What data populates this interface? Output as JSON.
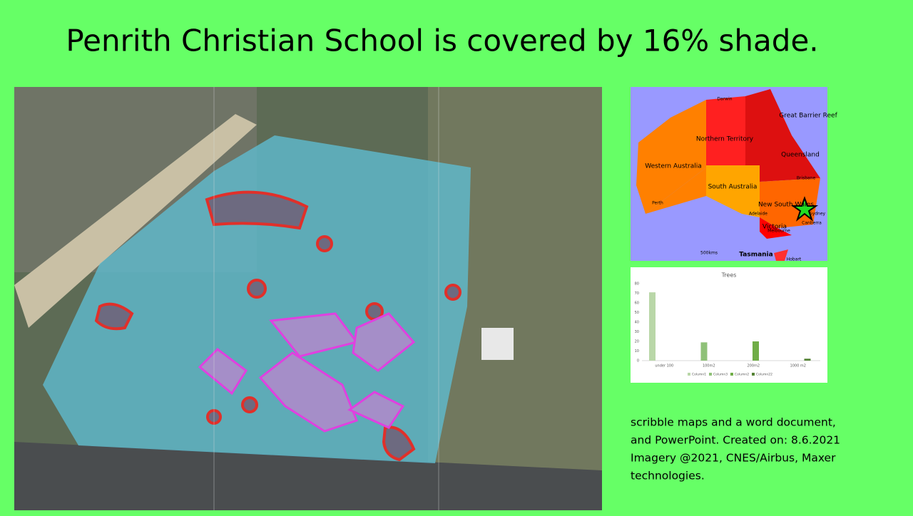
{
  "title": "Penrith Christian School is covered by 16% shade.",
  "map": {
    "labels": [
      "Darwin",
      "Northern Territory",
      "Queensland",
      "Great Barrier Reef",
      "Western Australia",
      "South Australia",
      "New South Wales",
      "Brisbane",
      "Perth",
      "Adelaide",
      "Sydney",
      "Canberra",
      "Melbourne",
      "Victoria",
      "Tasmania",
      "Hobart",
      "500kms"
    ]
  },
  "chart_data": {
    "type": "bar",
    "title": "Trees",
    "categories": [
      "under 100",
      "100m2",
      "200m2",
      "1000 m2"
    ],
    "series": [
      {
        "name": "Column1",
        "color": "#b9d7a8",
        "values": [
          71,
          null,
          null,
          null
        ]
      },
      {
        "name": "Column3",
        "color": "#8fc178",
        "values": [
          null,
          19,
          null,
          null
        ]
      },
      {
        "name": "Column2",
        "color": "#70ad47",
        "values": [
          null,
          null,
          20,
          null
        ]
      },
      {
        "name": "Column22",
        "color": "#548235",
        "values": [
          null,
          null,
          null,
          2
        ]
      }
    ],
    "ylim": [
      0,
      80
    ],
    "yticks": [
      0,
      10,
      20,
      30,
      40,
      50,
      60,
      70,
      80
    ],
    "grid": false
  },
  "notes": [
    "scribble maps and a word document,",
    "and PowerPoint. Created on: 8.6.2021",
    "Imagery @2021, CNES/Airbus, Maxer",
    "technologies."
  ]
}
